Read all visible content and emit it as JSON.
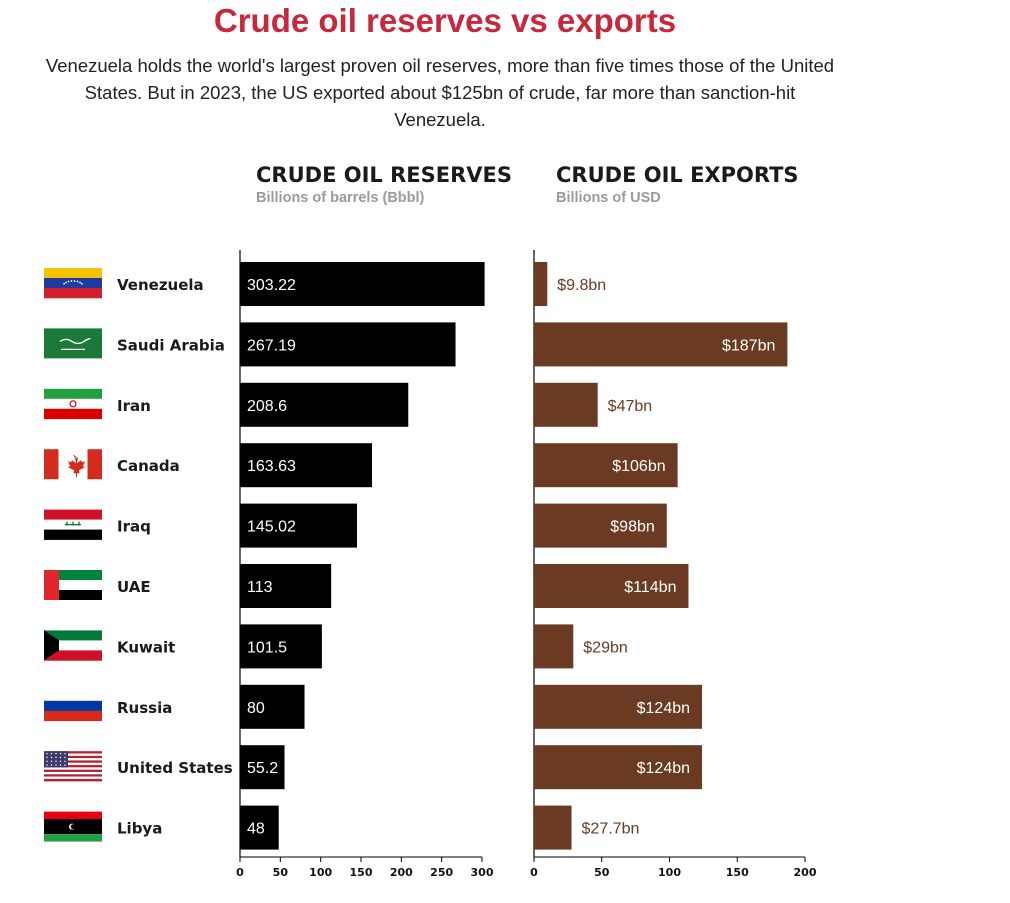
{
  "title": "Crude oil reserves vs exports",
  "subtitle": "Venezuela holds the world's largest proven oil reserves, more than five times those of the United States. But in 2023, the US exported about $125bn of crude, far more than sanction-hit Venezuela.",
  "colors": {
    "title": "#c8283c",
    "reserves_bar": "#000000",
    "exports_bar": "#6b3a22",
    "export_label": "#6b3a22"
  },
  "chart_data": [
    {
      "type": "bar",
      "orientation": "horizontal",
      "title": "CRUDE OIL RESERVES",
      "subtitle": "Billions of barrels (Bbbl)",
      "categories": [
        "Venezuela",
        "Saudi Arabia",
        "Iran",
        "Canada",
        "Iraq",
        "UAE",
        "Kuwait",
        "Russia",
        "United States",
        "Libya"
      ],
      "values": [
        303.22,
        267.19,
        208.6,
        163.63,
        145.02,
        113,
        101.5,
        80,
        55.2,
        48
      ],
      "labels": [
        "303.22",
        "267.19",
        "208.6",
        "163.63",
        "145.02",
        "113",
        "101.5",
        "80",
        "55.2",
        "48"
      ],
      "xlim": [
        0,
        300
      ],
      "ticks": [
        0,
        50,
        100,
        150,
        200,
        250,
        300
      ],
      "grid": false
    },
    {
      "type": "bar",
      "orientation": "horizontal",
      "title": "CRUDE OIL EXPORTS",
      "subtitle": "Billions of USD",
      "categories": [
        "Venezuela",
        "Saudi Arabia",
        "Iran",
        "Canada",
        "Iraq",
        "UAE",
        "Kuwait",
        "Russia",
        "United States",
        "Libya"
      ],
      "values": [
        9.8,
        187,
        47,
        106,
        98,
        114,
        29,
        124,
        124,
        27.7
      ],
      "labels": [
        "$9.8bn",
        "$187bn",
        "$47bn",
        "$106bn",
        "$98bn",
        "$114bn",
        "$29bn",
        "$124bn",
        "$124bn",
        "$27.7bn"
      ],
      "xlim": [
        0,
        200
      ],
      "ticks": [
        0,
        50,
        100,
        150,
        200
      ],
      "grid": false
    }
  ],
  "flags": [
    "venezuela-flag-icon",
    "saudi-arabia-flag-icon",
    "iran-flag-icon",
    "canada-flag-icon",
    "iraq-flag-icon",
    "uae-flag-icon",
    "kuwait-flag-icon",
    "russia-flag-icon",
    "united-states-flag-icon",
    "libya-flag-icon"
  ]
}
